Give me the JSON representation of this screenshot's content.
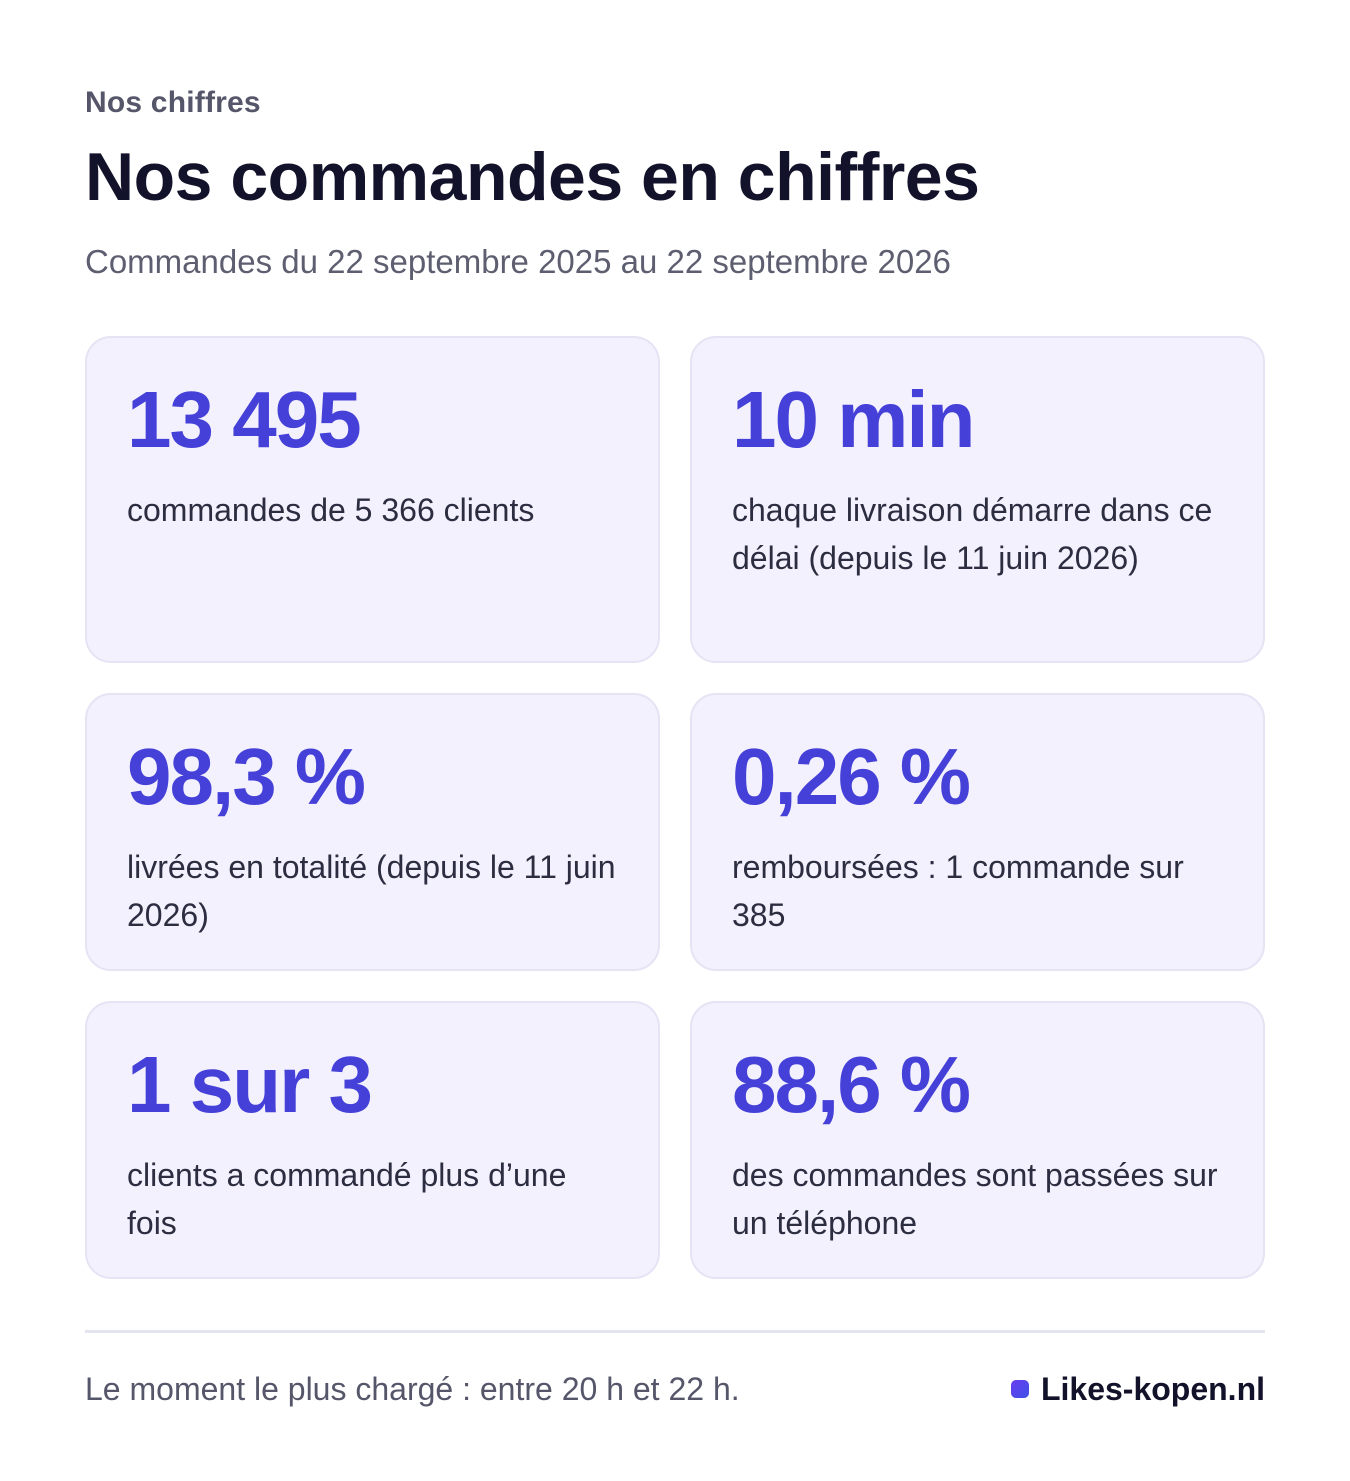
{
  "header": {
    "eyebrow": "Nos chiffres",
    "title": "Nos commandes en chiffres",
    "subtitle": "Commandes du 22 septembre 2025 au 22 septembre 2026"
  },
  "stats": [
    {
      "value": "13 495",
      "label": "commandes de 5 366 clients"
    },
    {
      "value": "10 min",
      "label": "chaque livraison démarre dans ce délai (depuis le 11 juin 2026)"
    },
    {
      "value": "98,3 %",
      "label": "livrées en totalité (depuis le 11 juin 2026)"
    },
    {
      "value": "0,26 %",
      "label": "remboursées : 1 commande sur 385"
    },
    {
      "value": "1 sur 3",
      "label": "clients a commandé plus d’une fois"
    },
    {
      "value": "88,6 %",
      "label": "des commandes sont passées sur un téléphone"
    }
  ],
  "footer": {
    "note": "Le moment le plus chargé : entre 20 h et 22 h.",
    "brand": "Likes-kopen.nl",
    "brand_icon": "square-dot-icon"
  },
  "colors": {
    "accent": "#4540d8",
    "card_bg": "#f3f1fd",
    "title": "#12122a"
  }
}
